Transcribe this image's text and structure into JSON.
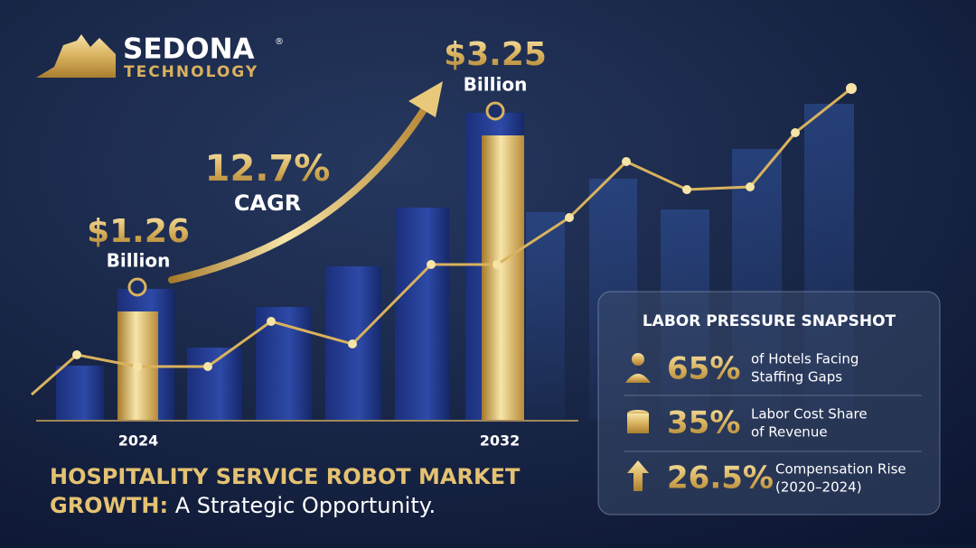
{
  "logo": {
    "name": "SEDONA",
    "mark": "®",
    "subtitle": "TECHNOLOGY"
  },
  "start": {
    "value": "$1.26",
    "unit": "Billion",
    "year": "2024"
  },
  "end": {
    "value": "$3.25",
    "unit": "Billion",
    "year": "2032"
  },
  "cagr": {
    "value": "12.7%",
    "label": "CAGR"
  },
  "headline": {
    "line1": "HOSPITALITY SERVICE ROBOT MARKET",
    "line2_bold": "GROWTH:",
    "line2_rest": "A Strategic Opportunity."
  },
  "snapshot": {
    "title": "LABOR PRESSURE SNAPSHOT",
    "items": [
      {
        "value": "65%",
        "text": [
          "of Hotels Facing",
          "Staffing Gaps"
        ]
      },
      {
        "value": "35%",
        "text": [
          "Labor Cost Share",
          "of Revenue"
        ]
      },
      {
        "value": "26.5%",
        "text": [
          "Compensation Rise",
          "(2020–2024)"
        ]
      }
    ]
  }
}
